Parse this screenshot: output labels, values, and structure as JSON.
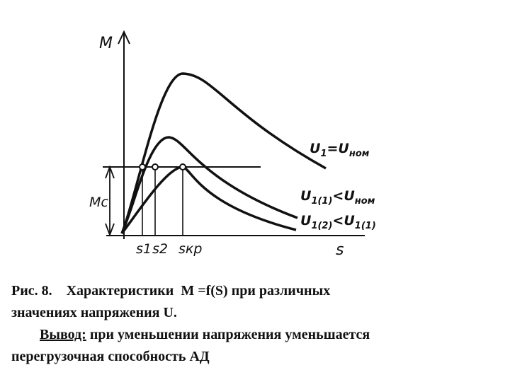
{
  "figure": {
    "axis_y_label": "M",
    "axis_x_label": "s",
    "mc_label": "Mc",
    "s_labels": [
      "s1",
      "s2",
      "sкр"
    ],
    "curves": [
      {
        "label_main": "U",
        "label_sub": "1",
        "label_rest": "=U",
        "label_sub2": "ном"
      },
      {
        "label_main": "U",
        "label_sub": "1(1)",
        "label_rest": "<U",
        "label_sub2": "ном"
      },
      {
        "label_main": "U",
        "label_sub": "1(2)",
        "label_rest": "<U",
        "label_sub2": "1(1)"
      }
    ]
  },
  "caption": {
    "line1": "Рис. 8.    Характеристики  M =f(S) при различных",
    "line2": "значениях напряжения U.",
    "conclusion_label": "Вывод:",
    "conclusion_text": " при уменьшении напряжения уменьшается",
    "line4": "перегрузочная способность АД"
  }
}
